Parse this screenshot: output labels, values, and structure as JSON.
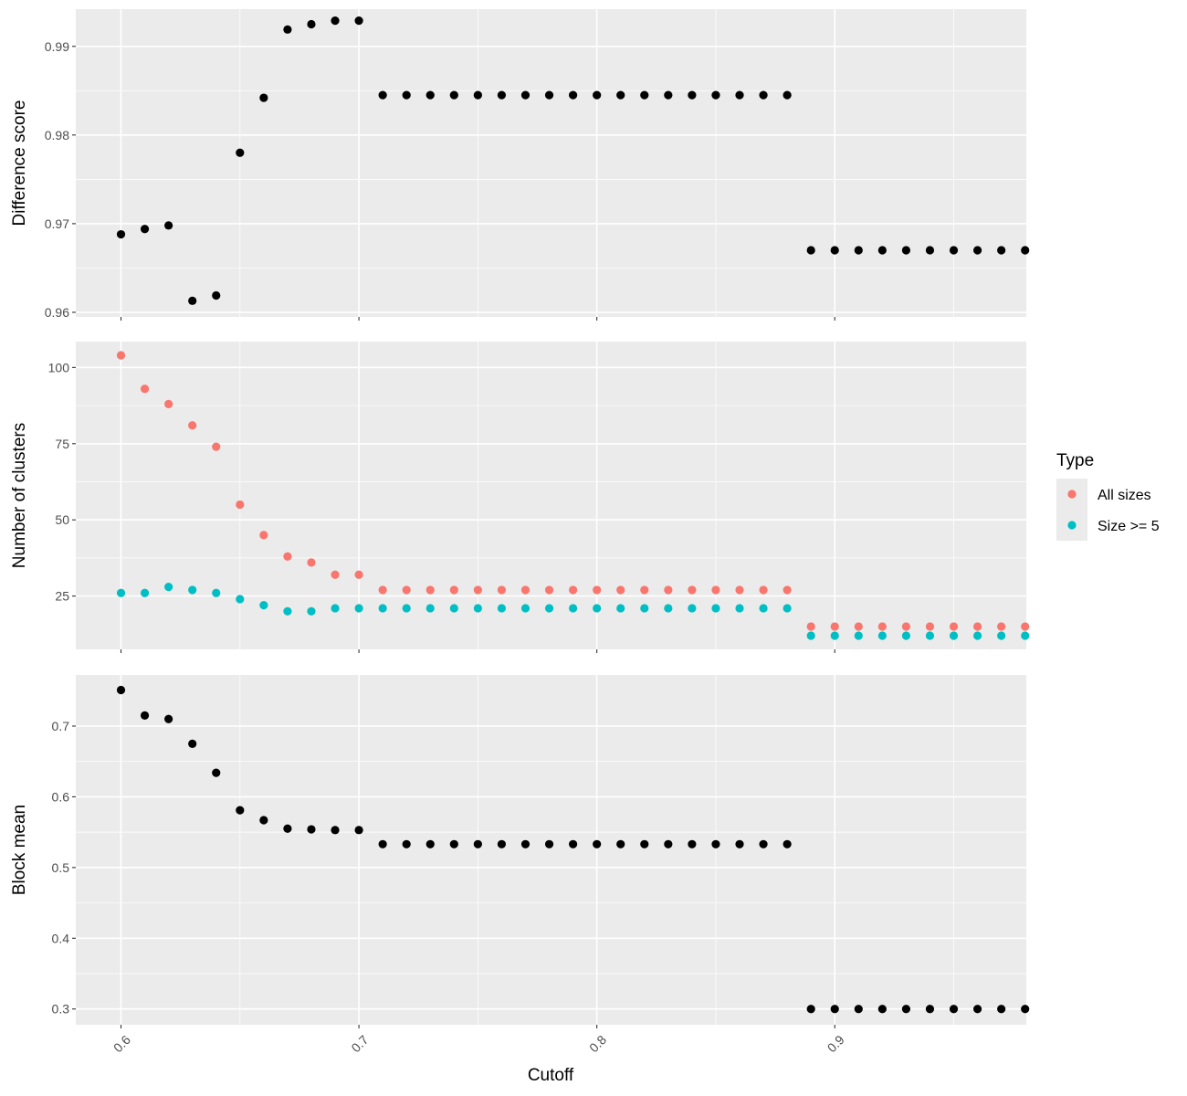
{
  "chart_data": {
    "type": "scatter",
    "xlabel": "Cutoff",
    "x_ticks": [
      "0.6",
      "0.7",
      "0.8",
      "0.9"
    ],
    "x_tick_values": [
      0.6,
      0.7,
      0.8,
      0.9
    ],
    "xlim": [
      0.581,
      0.9805
    ],
    "grid": true,
    "legend": {
      "title": "Type",
      "placement": "right",
      "entries": [
        {
          "label": "All sizes",
          "color": "#F8766D"
        },
        {
          "label": "Size >= 5",
          "color": "#00BFC4"
        }
      ]
    },
    "x": [
      0.6,
      0.61,
      0.62,
      0.63,
      0.64,
      0.65,
      0.66,
      0.67,
      0.68,
      0.69,
      0.7,
      0.71,
      0.72,
      0.73,
      0.74,
      0.75,
      0.76,
      0.77,
      0.78,
      0.79,
      0.8,
      0.81,
      0.82,
      0.83,
      0.84,
      0.85,
      0.86,
      0.87,
      0.88,
      0.89,
      0.9,
      0.91,
      0.92,
      0.93,
      0.94,
      0.95,
      0.96,
      0.97,
      0.98
    ],
    "panels": [
      {
        "ylabel": "Difference score",
        "ylim": [
          0.95948,
          0.9942
        ],
        "y_ticks": [
          0.96,
          0.97,
          0.98,
          0.99
        ],
        "y_tick_labels": [
          "0.96",
          "0.97",
          "0.98",
          "0.99"
        ],
        "series": [
          {
            "color": "#000000",
            "values": [
              0.9688,
              0.9694,
              0.9698,
              0.9613,
              0.9619,
              0.978,
              0.9842,
              0.9919,
              0.9925,
              0.9929,
              0.9929,
              0.9845,
              0.9845,
              0.9845,
              0.9845,
              0.9845,
              0.9845,
              0.9845,
              0.9845,
              0.9845,
              0.9845,
              0.9845,
              0.9845,
              0.9845,
              0.9845,
              0.9845,
              0.9845,
              0.9845,
              0.9845,
              0.967,
              0.967,
              0.967,
              0.967,
              0.967,
              0.967,
              0.967,
              0.967,
              0.967,
              0.967
            ]
          }
        ]
      },
      {
        "ylabel": "Number of clusters",
        "ylim": [
          7.5,
          108.5
        ],
        "y_ticks": [
          25,
          50,
          75,
          100
        ],
        "y_tick_labels": [
          "25",
          "50",
          "75",
          "100"
        ],
        "series": [
          {
            "name": "All sizes",
            "color": "#F8766D",
            "values": [
              104,
              93,
              88,
              81,
              74,
              55,
              45,
              38,
              36,
              32,
              32,
              27,
              27,
              27,
              27,
              27,
              27,
              27,
              27,
              27,
              27,
              27,
              27,
              27,
              27,
              27,
              27,
              27,
              27,
              15,
              15,
              15,
              15,
              15,
              15,
              15,
              15,
              15,
              15
            ]
          },
          {
            "name": "Size >= 5",
            "color": "#00BFC4",
            "values": [
              26,
              26,
              28,
              27,
              26,
              24,
              22,
              20,
              20,
              21,
              21,
              21,
              21,
              21,
              21,
              21,
              21,
              21,
              21,
              21,
              21,
              21,
              21,
              21,
              21,
              21,
              21,
              21,
              21,
              12,
              12,
              12,
              12,
              12,
              12,
              12,
              12,
              12,
              12
            ]
          }
        ]
      },
      {
        "ylabel": "Block mean",
        "ylim": [
          0.2777,
          0.7723
        ],
        "y_ticks": [
          0.3,
          0.4,
          0.5,
          0.6,
          0.7
        ],
        "y_tick_labels": [
          "0.3",
          "0.4",
          "0.5",
          "0.6",
          "0.7"
        ],
        "series": [
          {
            "color": "#000000",
            "values": [
              0.751,
              0.715,
              0.71,
              0.675,
              0.634,
              0.581,
              0.567,
              0.555,
              0.554,
              0.553,
              0.553,
              0.533,
              0.533,
              0.533,
              0.533,
              0.533,
              0.533,
              0.533,
              0.533,
              0.533,
              0.533,
              0.533,
              0.533,
              0.533,
              0.533,
              0.533,
              0.533,
              0.533,
              0.533,
              0.3,
              0.3,
              0.3,
              0.3,
              0.3,
              0.3,
              0.3,
              0.3,
              0.3,
              0.3
            ]
          }
        ]
      }
    ]
  }
}
